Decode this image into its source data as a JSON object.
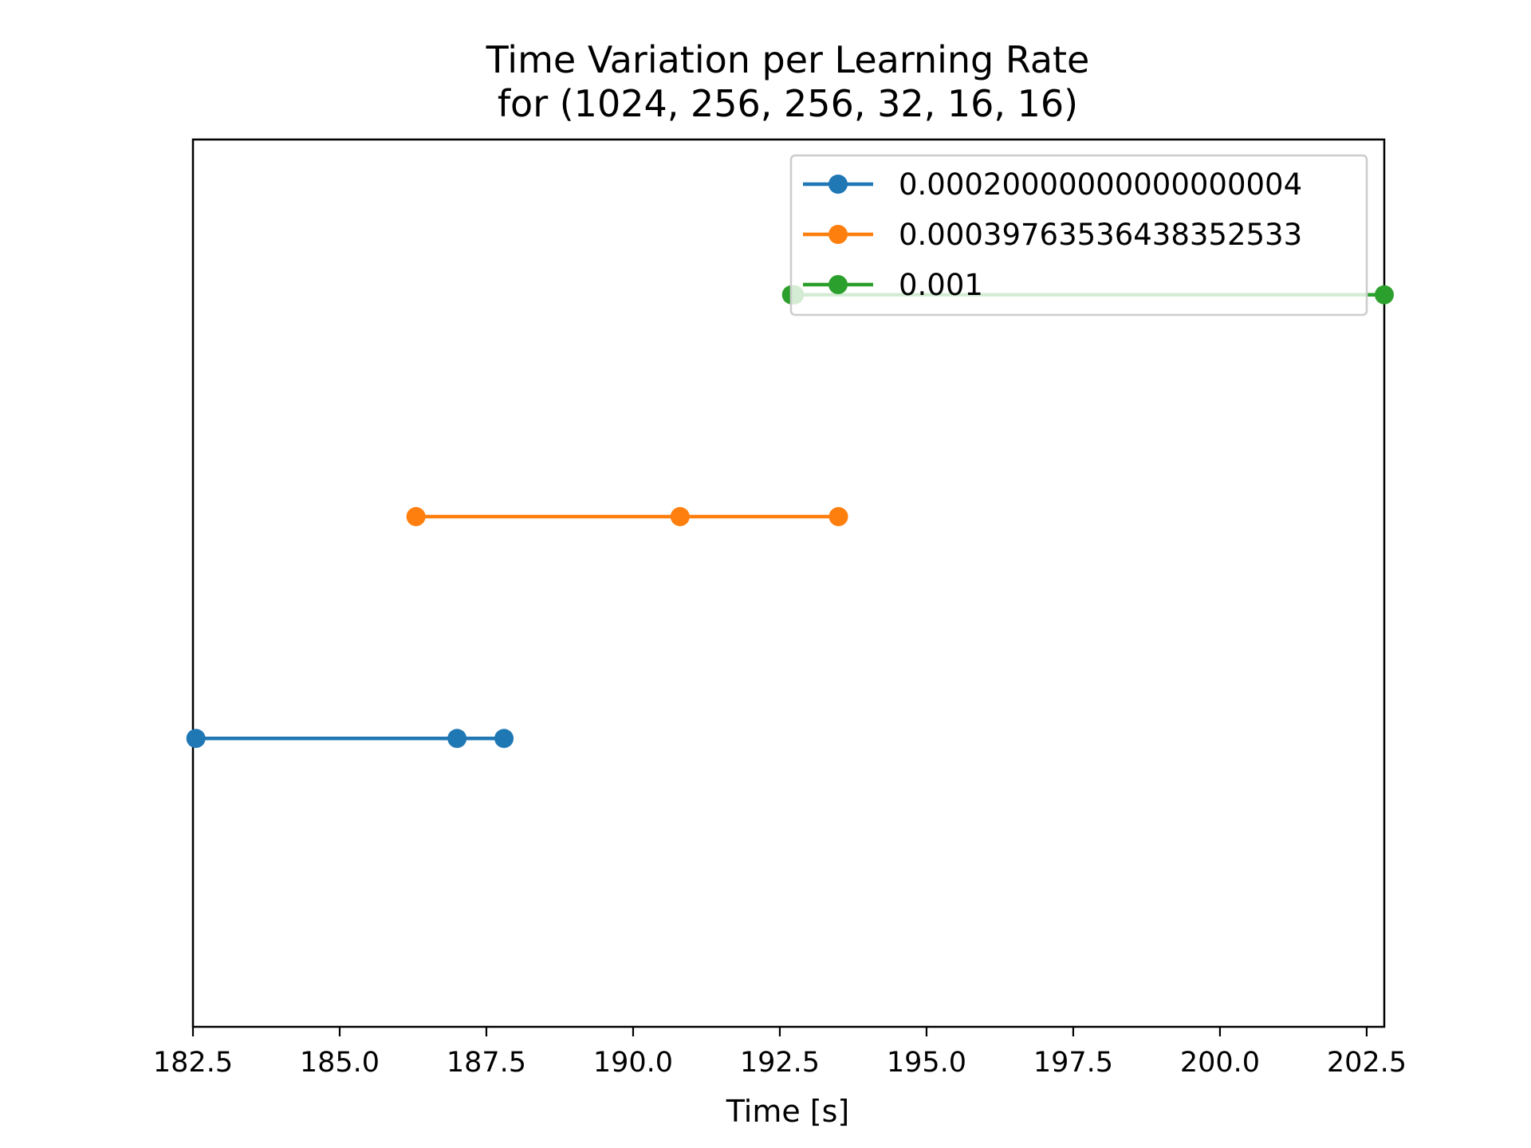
{
  "chart_data": {
    "type": "line",
    "title_line1": "Time Variation per Learning Rate",
    "title_line2": "for (1024, 256, 256, 32, 16, 16)",
    "xlabel": "Time [s]",
    "ylabel": "",
    "xlim": [
      182.5,
      202.8
    ],
    "ylim": [
      -0.3,
      3.7
    ],
    "x_ticks": [
      "182.5",
      "185.0",
      "187.5",
      "190.0",
      "192.5",
      "195.0",
      "197.5",
      "200.0",
      "202.5"
    ],
    "y_ticks_visible": false,
    "grid": false,
    "legend_position": "upper right",
    "series": [
      {
        "name": "0.00020000000000000004",
        "color": "#1f77b4",
        "y": 1,
        "x": [
          182.55,
          187.0,
          187.8
        ]
      },
      {
        "name": "0.00039763536438352533",
        "color": "#ff7f0e",
        "y": 2,
        "x": [
          186.3,
          190.8,
          193.5
        ]
      },
      {
        "name": "0.001",
        "color": "#2ca02c",
        "y": 3,
        "x": [
          192.7,
          192.75,
          202.8
        ]
      }
    ]
  }
}
